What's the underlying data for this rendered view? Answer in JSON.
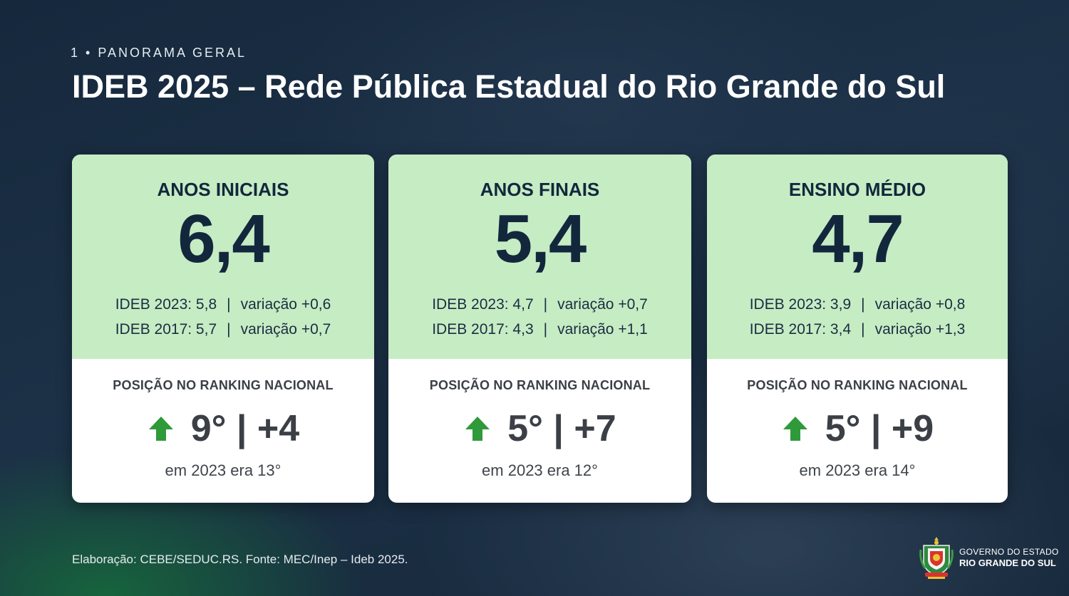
{
  "header": {
    "section": "1 • PANORAMA GERAL",
    "title": "IDEB 2025 – Rede Pública Estadual do Rio Grande do Sul"
  },
  "cards": [
    {
      "title": "ANOS INICIAIS",
      "value": "6,4",
      "line1_left": "IDEB 2023: 5,8",
      "line1_right": "variação +0,6",
      "line2_left": "IDEB 2017: 5,7",
      "line2_right": "variação +0,7",
      "rank_label": "POSIÇÃO NO RANKING NACIONAL",
      "rank": "9° | +4",
      "rank_prev": "em 2023 era 13°"
    },
    {
      "title": "ANOS FINAIS",
      "value": "5,4",
      "line1_left": "IDEB 2023: 4,7",
      "line1_right": "variação +0,7",
      "line2_left": "IDEB 2017: 4,3",
      "line2_right": "variação +1,1",
      "rank_label": "POSIÇÃO NO RANKING NACIONAL",
      "rank": "5° | +7",
      "rank_prev": "em 2023 era 12°"
    },
    {
      "title": "ENSINO MÉDIO",
      "value": "4,7",
      "line1_left": "IDEB 2023: 3,9",
      "line1_right": "variação +0,8",
      "line2_left": "IDEB 2017: 3,4",
      "line2_right": "variação +1,3",
      "rank_label": "POSIÇÃO NO RANKING NACIONAL",
      "rank": "5° | +9",
      "rank_prev": "em 2023 era 14°"
    }
  ],
  "separator": "|",
  "footer": {
    "source": "Elaboração: CEBE/SEDUC.RS. Fonte: MEC/Inep – Ideb 2025.",
    "gov_line1": "GOVERNO DO ESTADO",
    "gov_line2": "RIO GRANDE DO SUL"
  },
  "icons": {
    "arrow": "arrow-up-icon",
    "logo": "state-coat-of-arms-icon"
  },
  "colors": {
    "card_top": "#c6ecc4",
    "arrow": "#2e9a3a",
    "navy_text": "#13273c"
  }
}
